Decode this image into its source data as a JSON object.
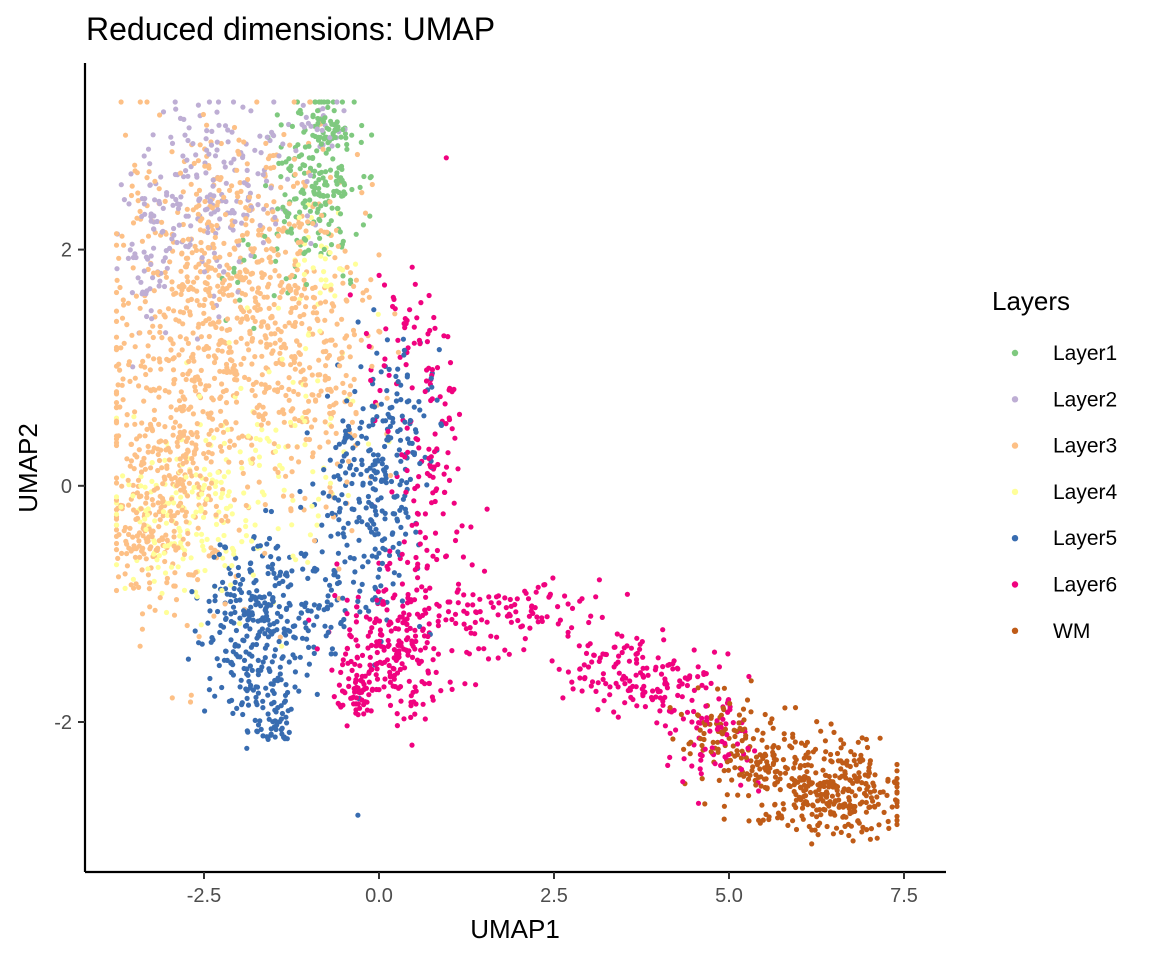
{
  "chart_data": {
    "type": "scatter",
    "title": "Reduced dimensions: UMAP",
    "xlabel": "UMAP1",
    "ylabel": "UMAP2",
    "xlim": [
      -4.2,
      8.1
    ],
    "ylim": [
      -3.27,
      3.58
    ],
    "x_ticks": [
      -2.5,
      0.0,
      2.5,
      5.0,
      7.5
    ],
    "x_tick_labels": [
      "-2.5",
      "0.0",
      "2.5",
      "5.0",
      "7.5"
    ],
    "y_ticks": [
      -2,
      0,
      2
    ],
    "y_tick_labels": [
      "-2",
      "0",
      "2"
    ],
    "grid": false,
    "legend": {
      "title": "Layers",
      "position": "right"
    },
    "series": [
      {
        "name": "Layer1",
        "color": "#7FC97F",
        "clusters": [
          {
            "cx": -0.9,
            "cy": 2.55,
            "sx": 0.32,
            "sy": 0.42,
            "n": 190
          },
          {
            "cx": -0.7,
            "cy": 3.0,
            "sx": 0.15,
            "sy": 0.12,
            "n": 40
          },
          {
            "cx": -1.7,
            "cy": 1.9,
            "sx": 0.35,
            "sy": 0.25,
            "n": 20
          }
        ]
      },
      {
        "name": "Layer2",
        "color": "#BEAED4",
        "clusters": [
          {
            "cx": -2.4,
            "cy": 2.5,
            "sx": 0.55,
            "sy": 0.4,
            "n": 190
          },
          {
            "cx": -3.3,
            "cy": 1.9,
            "sx": 0.22,
            "sy": 0.35,
            "n": 55
          },
          {
            "cx": -1.0,
            "cy": 3.0,
            "sx": 0.3,
            "sy": 0.12,
            "n": 25
          }
        ]
      },
      {
        "name": "Layer3",
        "color": "#FDC086",
        "clusters": [
          {
            "cx": -2.1,
            "cy": 1.6,
            "sx": 0.8,
            "sy": 0.7,
            "n": 700
          },
          {
            "cx": -3.0,
            "cy": 0.2,
            "sx": 0.5,
            "sy": 0.65,
            "n": 340
          },
          {
            "cx": -0.9,
            "cy": 0.9,
            "sx": 0.45,
            "sy": 0.7,
            "n": 170
          },
          {
            "cx": -3.4,
            "cy": -0.4,
            "sx": 0.25,
            "sy": 0.15,
            "n": 70
          }
        ]
      },
      {
        "name": "Layer4",
        "color": "#FFFF99",
        "clusters": [
          {
            "cx": -2.8,
            "cy": -0.3,
            "sx": 0.55,
            "sy": 0.35,
            "n": 170
          },
          {
            "cx": -1.5,
            "cy": 0.2,
            "sx": 0.6,
            "sy": 0.5,
            "n": 80
          },
          {
            "cx": -0.7,
            "cy": 1.8,
            "sx": 0.3,
            "sy": 0.3,
            "n": 35
          }
        ]
      },
      {
        "name": "Layer5",
        "color": "#386CB0",
        "clusters": [
          {
            "cx": -1.75,
            "cy": -1.2,
            "sx": 0.38,
            "sy": 0.4,
            "n": 290
          },
          {
            "cx": -0.1,
            "cy": -0.15,
            "sx": 0.35,
            "sy": 0.55,
            "n": 240
          },
          {
            "cx": 0.3,
            "cy": 0.55,
            "sx": 0.28,
            "sy": 0.3,
            "n": 70
          },
          {
            "cx": -1.5,
            "cy": -1.95,
            "sx": 0.12,
            "sy": 0.12,
            "n": 45
          },
          {
            "cx": -0.8,
            "cy": -0.9,
            "sx": 0.3,
            "sy": 0.3,
            "n": 50
          }
        ]
      },
      {
        "name": "Layer6",
        "color": "#F0027F",
        "clusters": [
          {
            "cx": 0.2,
            "cy": -1.4,
            "sx": 0.4,
            "sy": 0.3,
            "n": 230
          },
          {
            "cx": 0.7,
            "cy": 0.1,
            "sx": 0.3,
            "sy": 0.7,
            "n": 130
          },
          {
            "cx": 1.8,
            "cy": -1.05,
            "sx": 0.7,
            "sy": 0.18,
            "n": 110
          },
          {
            "cx": 3.7,
            "cy": -1.6,
            "sx": 0.55,
            "sy": 0.16,
            "n": 140
          },
          {
            "cx": 4.7,
            "cy": -2.1,
            "sx": 0.4,
            "sy": 0.2,
            "n": 80
          },
          {
            "cx": -0.3,
            "cy": -1.75,
            "sx": 0.15,
            "sy": 0.1,
            "n": 40
          },
          {
            "cx": 0.3,
            "cy": 1.3,
            "sx": 0.3,
            "sy": 0.25,
            "n": 35
          }
        ]
      },
      {
        "name": "WM",
        "color": "#BF5B17",
        "clusters": [
          {
            "cx": 6.6,
            "cy": -2.6,
            "sx": 0.45,
            "sy": 0.2,
            "n": 280
          },
          {
            "cx": 5.6,
            "cy": -2.35,
            "sx": 0.45,
            "sy": 0.2,
            "n": 120
          },
          {
            "cx": 4.8,
            "cy": -2.1,
            "sx": 0.35,
            "sy": 0.18,
            "n": 70
          }
        ]
      }
    ]
  }
}
